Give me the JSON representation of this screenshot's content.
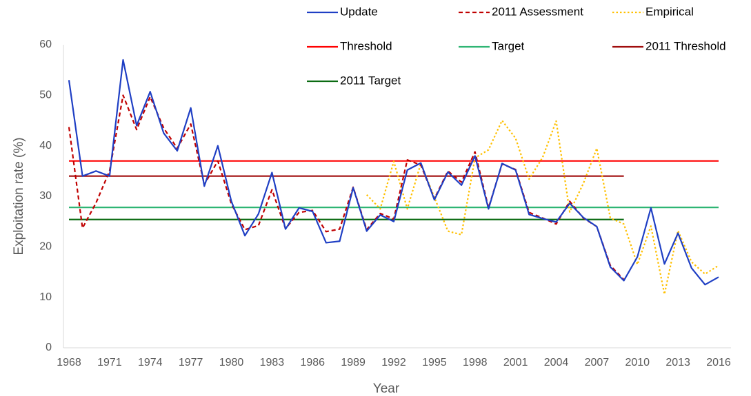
{
  "chart_data": {
    "type": "line",
    "x_label": "Year",
    "y_label": "Exploitation rate (%)",
    "x": [
      1968,
      1969,
      1970,
      1971,
      1972,
      1973,
      1974,
      1975,
      1976,
      1977,
      1978,
      1979,
      1980,
      1981,
      1982,
      1983,
      1984,
      1985,
      1986,
      1987,
      1988,
      1989,
      1990,
      1991,
      1992,
      1993,
      1994,
      1995,
      1996,
      1997,
      1998,
      1999,
      2000,
      2001,
      2002,
      2003,
      2004,
      2005,
      2006,
      2007,
      2008,
      2009,
      2010,
      2011,
      2012,
      2013,
      2014,
      2015,
      2016
    ],
    "xlim": [
      1968,
      2016
    ],
    "xticks": [
      1968,
      1971,
      1974,
      1977,
      1980,
      1983,
      1986,
      1989,
      1992,
      1995,
      1998,
      2001,
      2004,
      2007,
      2010,
      2013,
      2016
    ],
    "ylim": [
      0,
      60
    ],
    "yticks": [
      0,
      10,
      20,
      30,
      40,
      50,
      60
    ],
    "grid": false,
    "legend": "top",
    "series": [
      {
        "name": "Update",
        "color": "#1f3fc4",
        "dash": "solid",
        "values": [
          53,
          34,
          35,
          34,
          57,
          44,
          50.7,
          42.5,
          39,
          47.5,
          32,
          40,
          29,
          22.2,
          26.5,
          34.7,
          23.5,
          27.7,
          27,
          20.8,
          21.1,
          31.7,
          23.1,
          26.3,
          25,
          35.2,
          36.6,
          29.3,
          34.8,
          32.2,
          38,
          27.5,
          36.5,
          35.2,
          26.4,
          25.6,
          24.9,
          28.6,
          25.8,
          24,
          16,
          13.3,
          18,
          27.7,
          16.6,
          22.7,
          15.8,
          12.5,
          14
        ]
      },
      {
        "name": "2011 Assessment",
        "color": "#c00000",
        "dash": "dashed",
        "values": [
          43.7,
          23.7,
          28.7,
          35,
          50,
          43.2,
          49.7,
          43.5,
          39.5,
          44.3,
          32.3,
          37,
          28.5,
          23.4,
          24.2,
          31.3,
          23.6,
          26.8,
          27.2,
          23,
          23.5,
          31.8,
          23.4,
          26.6,
          25.5,
          37.2,
          36.2,
          29.5,
          35,
          32.8,
          38.8,
          27.7,
          36.4,
          35.3,
          26.8,
          25.7,
          24.5,
          29,
          25.7,
          24,
          16.3,
          13.5,
          null,
          null,
          null,
          null,
          null,
          null,
          null
        ]
      },
      {
        "name": "Empirical",
        "color": "#ffc000",
        "dash": "dotted",
        "values": [
          null,
          null,
          null,
          null,
          null,
          null,
          null,
          null,
          null,
          null,
          null,
          null,
          null,
          null,
          null,
          null,
          null,
          null,
          null,
          null,
          null,
          null,
          30.3,
          27.5,
          36.9,
          27.5,
          36.5,
          29.8,
          23.1,
          22.4,
          37.6,
          39.2,
          45,
          41.5,
          33.4,
          37.7,
          44.9,
          26.9,
          32.5,
          39.5,
          25.7,
          24.5,
          16.5,
          24.1,
          10.6,
          23.2,
          17,
          14.6,
          16.3
        ]
      },
      {
        "name": "Threshold",
        "color": "#ff0000",
        "dash": "solid",
        "values": [
          37,
          37,
          37,
          37,
          37,
          37,
          37,
          37,
          37,
          37,
          37,
          37,
          37,
          37,
          37,
          37,
          37,
          37,
          37,
          37,
          37,
          37,
          37,
          37,
          37,
          37,
          37,
          37,
          37,
          37,
          37,
          37,
          37,
          37,
          37,
          37,
          37,
          37,
          37,
          37,
          37,
          37,
          37,
          37,
          37,
          37,
          37,
          37,
          37
        ]
      },
      {
        "name": "Target",
        "color": "#2fb574",
        "dash": "solid",
        "values": [
          27.8,
          27.8,
          27.8,
          27.8,
          27.8,
          27.8,
          27.8,
          27.8,
          27.8,
          27.8,
          27.8,
          27.8,
          27.8,
          27.8,
          27.8,
          27.8,
          27.8,
          27.8,
          27.8,
          27.8,
          27.8,
          27.8,
          27.8,
          27.8,
          27.8,
          27.8,
          27.8,
          27.8,
          27.8,
          27.8,
          27.8,
          27.8,
          27.8,
          27.8,
          27.8,
          27.8,
          27.8,
          27.8,
          27.8,
          27.8,
          27.8,
          27.8,
          27.8,
          27.8,
          27.8,
          27.8,
          27.8,
          27.8,
          27.8
        ]
      },
      {
        "name": "2011 Threshold",
        "color": "#a00d0d",
        "dash": "solid",
        "values": [
          34,
          34,
          34,
          34,
          34,
          34,
          34,
          34,
          34,
          34,
          34,
          34,
          34,
          34,
          34,
          34,
          34,
          34,
          34,
          34,
          34,
          34,
          34,
          34,
          34,
          34,
          34,
          34,
          34,
          34,
          34,
          34,
          34,
          34,
          34,
          34,
          34,
          34,
          34,
          34,
          34,
          34,
          null,
          null,
          null,
          null,
          null,
          null,
          null
        ]
      },
      {
        "name": "2011 Target",
        "color": "#0b6b12",
        "dash": "solid",
        "values": [
          25.4,
          25.4,
          25.4,
          25.4,
          25.4,
          25.4,
          25.4,
          25.4,
          25.4,
          25.4,
          25.4,
          25.4,
          25.4,
          25.4,
          25.4,
          25.4,
          25.4,
          25.4,
          25.4,
          25.4,
          25.4,
          25.4,
          25.4,
          25.4,
          25.4,
          25.4,
          25.4,
          25.4,
          25.4,
          25.4,
          25.4,
          25.4,
          25.4,
          25.4,
          25.4,
          25.4,
          25.4,
          25.4,
          25.4,
          25.4,
          25.4,
          25.4,
          null,
          null,
          null,
          null,
          null,
          null,
          null
        ]
      }
    ]
  }
}
